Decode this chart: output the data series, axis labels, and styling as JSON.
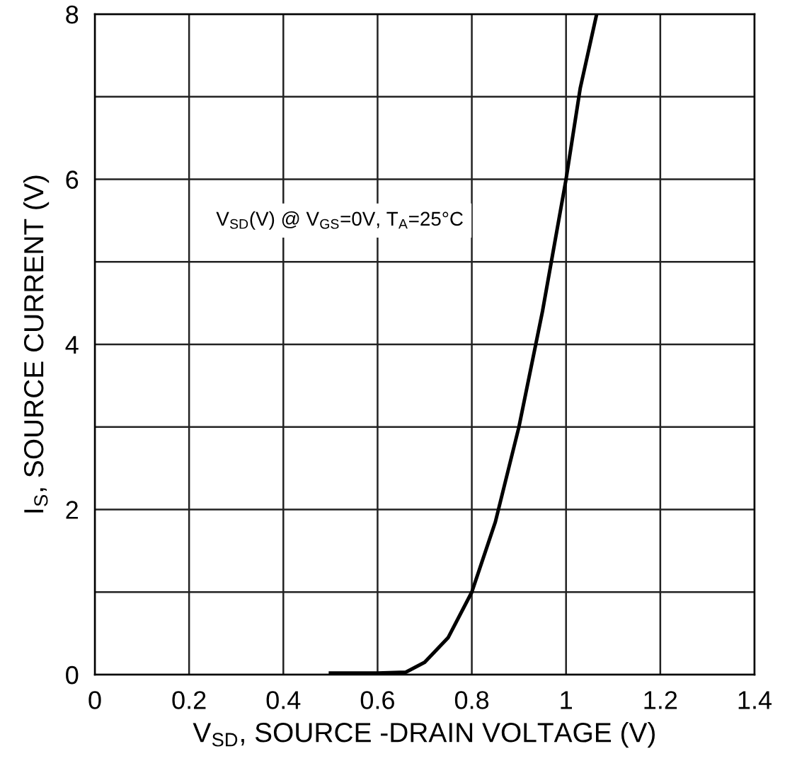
{
  "chart_data": {
    "type": "line",
    "xlabel": "V$_{SD}$, SOURCE -DRAIN VOLTAGE (V)",
    "ylabel": "I$_{S}$, SOURCE CURRENT (V)",
    "annotations": [
      "V$_{SD}$(V) @ V$_{GS}$=0V, T$_{A}$=25°C"
    ],
    "x": [
      0.5,
      0.6,
      0.66,
      0.7,
      0.75,
      0.8,
      0.85,
      0.9,
      0.95,
      1.0,
      1.03,
      1.065
    ],
    "series": [
      {
        "color": "#000000",
        "values": [
          0.02,
          0.02,
          0.03,
          0.15,
          0.45,
          1.0,
          1.85,
          3.0,
          4.4,
          6.0,
          7.1,
          8.0
        ]
      }
    ],
    "xlim": [
      0,
      1.4
    ],
    "ylim": [
      0,
      8
    ],
    "xticks": [
      0,
      0.2,
      0.4,
      0.6,
      0.8,
      1,
      1.2,
      1.4
    ],
    "yticks": [
      0,
      {
        "value": 1,
        "label": null
      },
      2,
      {
        "value": 3,
        "label": null
      },
      4,
      {
        "value": 5,
        "label": null
      },
      6,
      {
        "value": 7,
        "label": null
      },
      8
    ],
    "grid": true,
    "marker": "none",
    "line_style": "solid"
  }
}
